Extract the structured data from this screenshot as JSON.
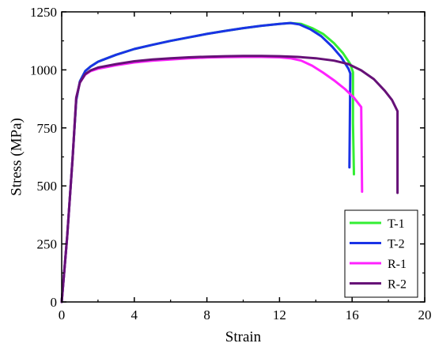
{
  "chart_data": {
    "type": "line",
    "xlabel": "Strain",
    "ylabel": "Stress (MPa)",
    "xlim": [
      0,
      20
    ],
    "ylim": [
      0,
      1250
    ],
    "xticks": [
      0,
      4,
      8,
      12,
      16,
      20
    ],
    "yticks": [
      0,
      250,
      500,
      750,
      1000,
      1250
    ],
    "xtick_labels": [
      "0",
      "4",
      "8",
      "12",
      "16",
      "20"
    ],
    "ytick_labels": [
      "0",
      "250",
      "500",
      "750",
      "1000",
      "1250"
    ],
    "grid": false,
    "legend_position": "bottom-right",
    "series": [
      {
        "name": "T-1",
        "color": "#33ee33",
        "points": [
          [
            0,
            0
          ],
          [
            0.3,
            280
          ],
          [
            0.6,
            620
          ],
          [
            0.8,
            870
          ],
          [
            1.0,
            950
          ],
          [
            1.3,
            995
          ],
          [
            1.6,
            1015
          ],
          [
            2,
            1035
          ],
          [
            3,
            1065
          ],
          [
            4,
            1090
          ],
          [
            5,
            1108
          ],
          [
            6,
            1125
          ],
          [
            7,
            1140
          ],
          [
            8,
            1155
          ],
          [
            9,
            1168
          ],
          [
            10,
            1180
          ],
          [
            11,
            1190
          ],
          [
            12,
            1198
          ],
          [
            12.6,
            1202
          ],
          [
            13.2,
            1198
          ],
          [
            13.8,
            1180
          ],
          [
            14.4,
            1155
          ],
          [
            15,
            1115
          ],
          [
            15.5,
            1072
          ],
          [
            15.9,
            1025
          ],
          [
            16.05,
            990
          ],
          [
            16.05,
            770
          ],
          [
            16.1,
            550
          ]
        ]
      },
      {
        "name": "T-2",
        "color": "#1a33e6",
        "points": [
          [
            0,
            0
          ],
          [
            0.3,
            280
          ],
          [
            0.6,
            620
          ],
          [
            0.8,
            870
          ],
          [
            1.0,
            950
          ],
          [
            1.3,
            995
          ],
          [
            1.6,
            1015
          ],
          [
            2,
            1035
          ],
          [
            3,
            1065
          ],
          [
            4,
            1090
          ],
          [
            5,
            1108
          ],
          [
            6,
            1125
          ],
          [
            7,
            1140
          ],
          [
            8,
            1155
          ],
          [
            9,
            1168
          ],
          [
            10,
            1180
          ],
          [
            11,
            1190
          ],
          [
            12,
            1198
          ],
          [
            12.6,
            1202
          ],
          [
            13.1,
            1196
          ],
          [
            13.7,
            1175
          ],
          [
            14.3,
            1145
          ],
          [
            14.9,
            1100
          ],
          [
            15.4,
            1055
          ],
          [
            15.8,
            1005
          ],
          [
            15.9,
            985
          ],
          [
            15.85,
            580
          ]
        ]
      },
      {
        "name": "R-1",
        "color": "#ff22ff",
        "points": [
          [
            0,
            0
          ],
          [
            0.3,
            280
          ],
          [
            0.6,
            620
          ],
          [
            0.8,
            880
          ],
          [
            1.0,
            945
          ],
          [
            1.3,
            980
          ],
          [
            1.6,
            995
          ],
          [
            2,
            1005
          ],
          [
            3,
            1020
          ],
          [
            4,
            1032
          ],
          [
            5,
            1040
          ],
          [
            6,
            1045
          ],
          [
            7,
            1050
          ],
          [
            8,
            1053
          ],
          [
            9,
            1055
          ],
          [
            10,
            1056
          ],
          [
            11,
            1056
          ],
          [
            12,
            1054
          ],
          [
            12.6,
            1050
          ],
          [
            13.2,
            1040
          ],
          [
            13.8,
            1018
          ],
          [
            14.4,
            988
          ],
          [
            15,
            955
          ],
          [
            15.6,
            918
          ],
          [
            16.1,
            880
          ],
          [
            16.5,
            840
          ],
          [
            16.55,
            475
          ]
        ]
      },
      {
        "name": "R-2",
        "color": "#661177",
        "points": [
          [
            0,
            0
          ],
          [
            0.3,
            280
          ],
          [
            0.6,
            620
          ],
          [
            0.8,
            880
          ],
          [
            1.0,
            945
          ],
          [
            1.3,
            982
          ],
          [
            1.6,
            998
          ],
          [
            2,
            1010
          ],
          [
            3,
            1025
          ],
          [
            4,
            1037
          ],
          [
            5,
            1045
          ],
          [
            6,
            1050
          ],
          [
            7,
            1054
          ],
          [
            8,
            1057
          ],
          [
            9,
            1059
          ],
          [
            10,
            1060
          ],
          [
            11,
            1060
          ],
          [
            12,
            1059
          ],
          [
            13,
            1056
          ],
          [
            14,
            1050
          ],
          [
            15,
            1040
          ],
          [
            15.8,
            1025
          ],
          [
            16.5,
            998
          ],
          [
            17.2,
            960
          ],
          [
            17.8,
            910
          ],
          [
            18.2,
            870
          ],
          [
            18.5,
            822
          ],
          [
            18.5,
            470
          ]
        ]
      }
    ]
  }
}
